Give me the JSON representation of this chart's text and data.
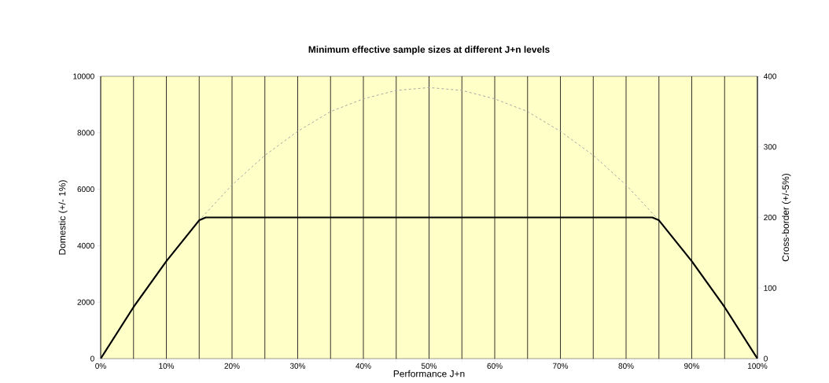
{
  "chart_data": {
    "type": "line",
    "title": "Minimum effective sample sizes at different J+n levels",
    "xlabel": "Performance J+n",
    "ylabel": "Domestic (+/- 1%)",
    "y2label": "Cross-border (+/-5%)",
    "xlim": [
      0,
      100
    ],
    "ylim": [
      0,
      10000
    ],
    "y2lim": [
      0,
      400
    ],
    "xticks": [
      {
        "value": 0,
        "label": "0%"
      },
      {
        "value": 5,
        "label": null
      },
      {
        "value": 10,
        "label": "10%"
      },
      {
        "value": 15,
        "label": null
      },
      {
        "value": 20,
        "label": "20%"
      },
      {
        "value": 25,
        "label": null
      },
      {
        "value": 30,
        "label": "30%"
      },
      {
        "value": 35,
        "label": null
      },
      {
        "value": 40,
        "label": "40%"
      },
      {
        "value": 45,
        "label": null
      },
      {
        "value": 50,
        "label": "50%"
      },
      {
        "value": 55,
        "label": null
      },
      {
        "value": 60,
        "label": "60%"
      },
      {
        "value": 65,
        "label": null
      },
      {
        "value": 70,
        "label": "70%"
      },
      {
        "value": 75,
        "label": null
      },
      {
        "value": 80,
        "label": "80%"
      },
      {
        "value": 85,
        "label": null
      },
      {
        "value": 90,
        "label": "90%"
      },
      {
        "value": 95,
        "label": null
      },
      {
        "value": 100,
        "label": "100%"
      }
    ],
    "yticks": [
      0,
      2000,
      4000,
      6000,
      8000,
      10000
    ],
    "y2ticks": [
      0,
      100,
      200,
      300,
      400
    ],
    "grid": "x",
    "marker": "none",
    "series": [
      {
        "color": "#a6a6a6",
        "line_style": "dashed",
        "x": [
          0,
          5,
          10,
          15,
          20,
          25,
          30,
          35,
          40,
          45,
          50,
          55,
          60,
          65,
          70,
          75,
          80,
          85,
          90,
          95,
          100
        ],
        "values": [
          0,
          1800,
          3450,
          4900,
          6150,
          7200,
          8050,
          8750,
          9200,
          9500,
          9600,
          9500,
          9200,
          8750,
          8050,
          7200,
          6150,
          4900,
          3450,
          1800,
          0
        ]
      },
      {
        "color": "#000000",
        "line_style": "solid",
        "axis": "y2",
        "x": [
          0,
          5,
          10,
          15,
          16,
          84,
          85,
          90,
          95,
          100
        ],
        "values": [
          0,
          73,
          138,
          196,
          200,
          200,
          196,
          138,
          73,
          0
        ]
      }
    ]
  }
}
